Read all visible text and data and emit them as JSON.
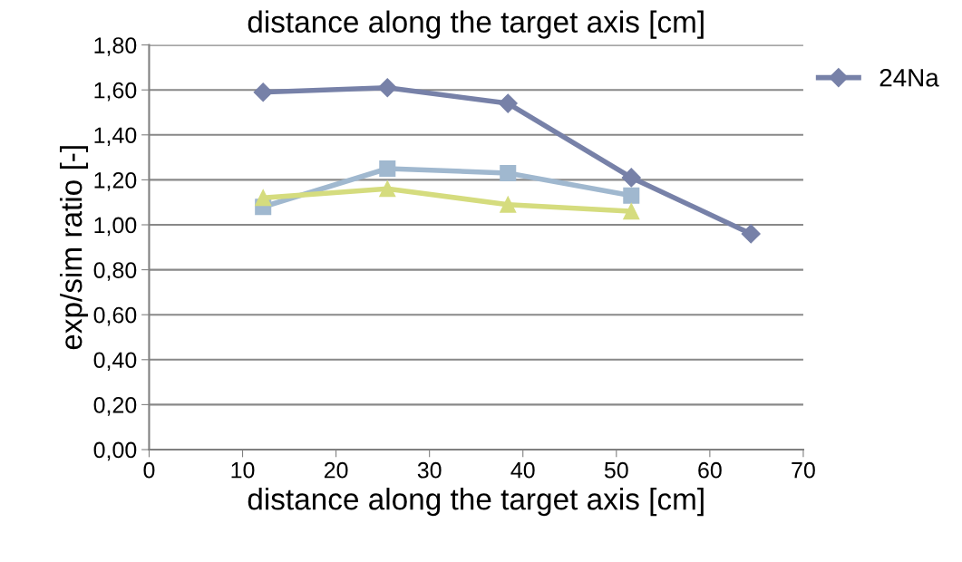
{
  "chart_data": {
    "type": "line",
    "title": "distance along the target axis [cm]",
    "xlabel": "distance along the target axis [cm]",
    "ylabel": "exp/sim ratio [-]",
    "series": [
      {
        "name": "24Na",
        "color": "#7781a8",
        "marker": "diamond",
        "x": [
          12.2,
          25.5,
          38.4,
          51.6,
          64.4
        ],
        "values": [
          1.59,
          1.61,
          1.54,
          1.21,
          0.96
        ]
      },
      {
        "color": "#a0b8cf",
        "marker": "square",
        "x": [
          12.2,
          25.5,
          38.4,
          51.6
        ],
        "values": [
          1.08,
          1.25,
          1.23,
          1.13
        ]
      },
      {
        "color": "#d5dc7e",
        "marker": "triangle",
        "x": [
          12.2,
          25.5,
          38.4,
          51.6
        ],
        "values": [
          1.12,
          1.16,
          1.09,
          1.06
        ]
      }
    ],
    "xlim": [
      0,
      70
    ],
    "xticks": [
      0,
      10,
      20,
      30,
      40,
      50,
      60,
      70
    ],
    "ylim": [
      0,
      1.8
    ],
    "yticks": [
      {
        "value": 0,
        "label": "0,00"
      },
      {
        "value": 0.2,
        "label": "0,20"
      },
      {
        "value": 0.4,
        "label": "0,40"
      },
      {
        "value": 0.6,
        "label": "0,60"
      },
      {
        "value": 0.8,
        "label": "0,80"
      },
      {
        "value": 1.0,
        "label": "1,00"
      },
      {
        "value": 1.2,
        "label": "1,20"
      },
      {
        "value": 1.4,
        "label": "1,40"
      },
      {
        "value": 1.6,
        "label": "1,60"
      },
      {
        "value": 1.8,
        "label": "1,80"
      }
    ],
    "grid": "y",
    "legend": "top right",
    "line_style": "solid"
  }
}
